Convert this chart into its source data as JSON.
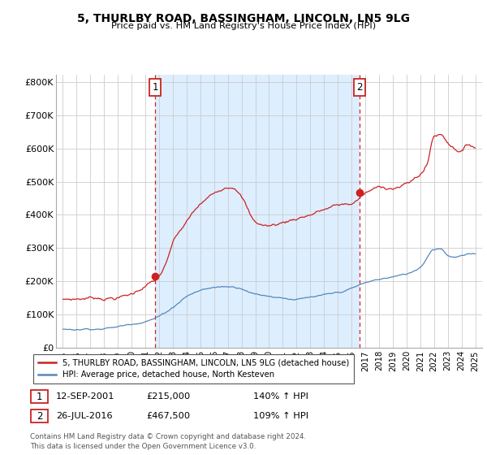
{
  "title": "5, THURLBY ROAD, BASSINGHAM, LINCOLN, LN5 9LG",
  "subtitle": "Price paid vs. HM Land Registry's House Price Index (HPI)",
  "ylim": [
    0,
    820000
  ],
  "yticks": [
    0,
    100000,
    200000,
    300000,
    400000,
    500000,
    600000,
    700000,
    800000
  ],
  "ytick_labels": [
    "£0",
    "£100K",
    "£200K",
    "£300K",
    "£400K",
    "£500K",
    "£600K",
    "£700K",
    "£800K"
  ],
  "red_color": "#cc2222",
  "blue_color": "#5588bb",
  "shade_color": "#ddeeff",
  "point1_year": 2001.7,
  "point1_y": 215000,
  "point2_year": 2016.58,
  "point2_y": 467500,
  "xlim_left": 1994.5,
  "xlim_right": 2025.5,
  "legend_line1": "5, THURLBY ROAD, BASSINGHAM, LINCOLN, LN5 9LG (detached house)",
  "legend_line2": "HPI: Average price, detached house, North Kesteven",
  "table_row1": [
    "1",
    "12-SEP-2001",
    "£215,000",
    "140% ↑ HPI"
  ],
  "table_row2": [
    "2",
    "26-JUL-2016",
    "£467,500",
    "109% ↑ HPI"
  ],
  "footnote": "Contains HM Land Registry data © Crown copyright and database right 2024.\nThis data is licensed under the Open Government Licence v3.0.",
  "bg": "#ffffff",
  "grid_color": "#cccccc"
}
